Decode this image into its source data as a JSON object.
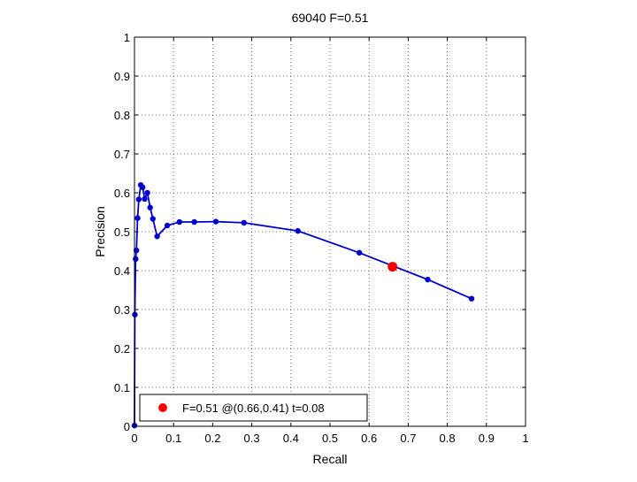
{
  "chart_data": {
    "type": "line",
    "title": "69040 F=0.51",
    "xlabel": "Recall",
    "ylabel": "Precision",
    "xlim": [
      0,
      1
    ],
    "ylim": [
      0,
      1
    ],
    "grid": true,
    "xticks": [
      0,
      0.1,
      0.2,
      0.3,
      0.4,
      0.5,
      0.6,
      0.7,
      0.8,
      0.9,
      1
    ],
    "yticks": [
      0,
      0.1,
      0.2,
      0.3,
      0.4,
      0.5,
      0.6,
      0.7,
      0.8,
      0.9,
      1
    ],
    "xtick_labels": [
      "0",
      "0.1",
      "0.2",
      "0.3",
      "0.4",
      "0.5",
      "0.6",
      "0.7",
      "0.8",
      "0.9",
      "1"
    ],
    "ytick_labels": [
      "0",
      "0.1",
      "0.2",
      "0.3",
      "0.4",
      "0.5",
      "0.6",
      "0.7",
      "0.8",
      "0.9",
      "1"
    ],
    "series": [
      {
        "color": "#0000cc",
        "points": [
          [
            0.862,
            0.328
          ],
          [
            0.75,
            0.377
          ],
          [
            0.575,
            0.446
          ],
          [
            0.418,
            0.502
          ],
          [
            0.28,
            0.523
          ],
          [
            0.208,
            0.526
          ],
          [
            0.153,
            0.525
          ],
          [
            0.115,
            0.525
          ],
          [
            0.084,
            0.516
          ],
          [
            0.058,
            0.488
          ],
          [
            0.047,
            0.533
          ],
          [
            0.04,
            0.562
          ],
          [
            0.033,
            0.6
          ],
          [
            0.026,
            0.584
          ],
          [
            0.021,
            0.614
          ],
          [
            0.016,
            0.62
          ],
          [
            0.011,
            0.583
          ],
          [
            0.008,
            0.535
          ],
          [
            0.005,
            0.452
          ],
          [
            0.003,
            0.43
          ],
          [
            0.001,
            0.287
          ],
          [
            0.0,
            0.002
          ]
        ]
      }
    ],
    "highlight_point": {
      "x": 0.66,
      "y": 0.41,
      "color": "#ff0000"
    },
    "legend": {
      "placement": "bottom-left",
      "entries": [
        {
          "label": "F=0.51 @(0.66,0.41) t=0.08",
          "color": "#ff0000"
        }
      ]
    }
  }
}
